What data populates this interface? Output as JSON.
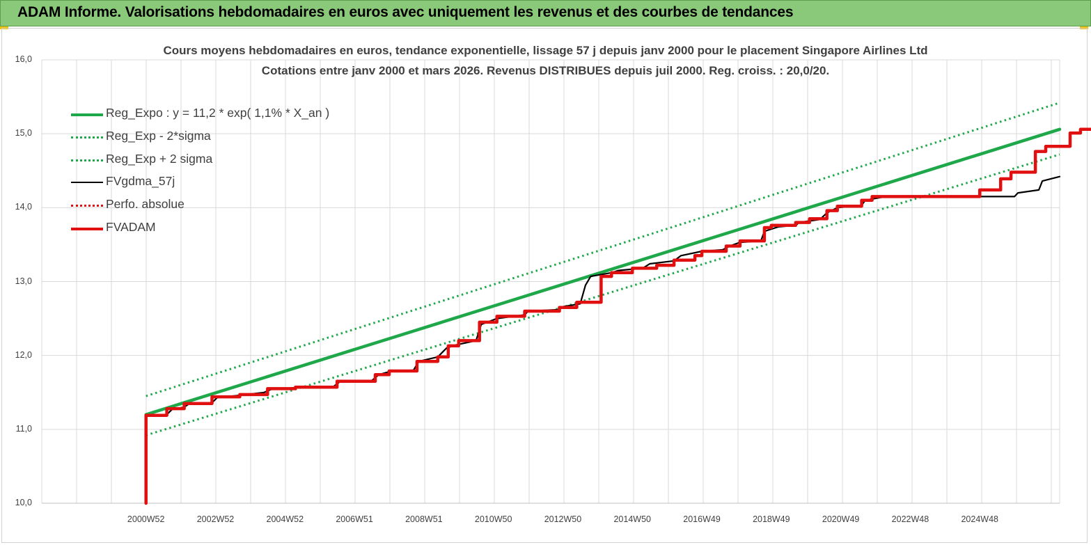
{
  "header": {
    "title": "ADAM Informe. Valorisations hebdomadaires en euros avec uniquement les revenus et des courbes de tendances"
  },
  "colors": {
    "header_bg": "#8ac97a",
    "reg_green": "#1fa84a",
    "fv_black": "#000000",
    "adam_red": "#e01010",
    "grid": "#d9d9d9"
  },
  "chart_data": {
    "type": "line",
    "title": "Cours moyens hebdomadaires en euros, tendance exponentielle, lissage 57 j depuis janv 2000 pour le placement Singapore Airlines Ltd",
    "subtitle": "Cotations entre janv 2000 et mars 2026. Revenus DISTRIBUES depuis juil 2000. Reg. croiss. : 20,0/20.",
    "xlabel": "",
    "ylabel": "",
    "ylim": [
      10.0,
      16.0
    ],
    "xlim": [
      1997.0,
      2026.3
    ],
    "y_ticks": [
      "10,0",
      "11,0",
      "12,0",
      "13,0",
      "14,0",
      "15,0",
      "16,0"
    ],
    "x_ticks": [
      {
        "label": "2000W52",
        "x": 2000.0
      },
      {
        "label": "2002W52",
        "x": 2002.0
      },
      {
        "label": "2004W52",
        "x": 2004.0
      },
      {
        "label": "2006W51",
        "x": 2006.0
      },
      {
        "label": "2008W51",
        "x": 2008.0
      },
      {
        "label": "2010W50",
        "x": 2010.0
      },
      {
        "label": "2012W50",
        "x": 2012.0
      },
      {
        "label": "2014W50",
        "x": 2014.0
      },
      {
        "label": "2016W49",
        "x": 2016.0
      },
      {
        "label": "2018W49",
        "x": 2018.0
      },
      {
        "label": "2020W49",
        "x": 2020.0
      },
      {
        "label": "2022W48",
        "x": 2022.0
      },
      {
        "label": "2024W48",
        "x": 2024.0
      }
    ],
    "grid": true,
    "legend_position": "top-left",
    "series": [
      {
        "name": "Reg_Expo : y = 11,2 * exp( 1,1% *  X_an )",
        "style": "solid-thick",
        "color": "#1fa84a",
        "points": [
          [
            2000.0,
            11.2
          ],
          [
            2026.3,
            15.06
          ]
        ]
      },
      {
        "name": "Reg_Exp - 2*sigma",
        "style": "dotted",
        "color": "#1fa84a",
        "points": [
          [
            2000.0,
            10.92
          ],
          [
            2026.3,
            14.72
          ]
        ]
      },
      {
        "name": "Reg_Exp + 2 sigma",
        "style": "dotted",
        "color": "#1fa84a",
        "points": [
          [
            2000.0,
            11.45
          ],
          [
            2026.3,
            15.42
          ]
        ]
      },
      {
        "name": "FVgdma_57j",
        "style": "solid",
        "color": "#000000",
        "points": [
          [
            2000.0,
            11.19
          ],
          [
            2000.6,
            11.2
          ],
          [
            2000.75,
            11.27
          ],
          [
            2001.1,
            11.3
          ],
          [
            2001.25,
            11.35
          ],
          [
            2001.9,
            11.36
          ],
          [
            2002.05,
            11.43
          ],
          [
            2002.7,
            11.46
          ],
          [
            2003.4,
            11.5
          ],
          [
            2003.6,
            11.54
          ],
          [
            2004.2,
            11.56
          ],
          [
            2005.4,
            11.58
          ],
          [
            2005.6,
            11.65
          ],
          [
            2006.5,
            11.66
          ],
          [
            2006.7,
            11.74
          ],
          [
            2007.0,
            11.78
          ],
          [
            2007.7,
            11.8
          ],
          [
            2007.85,
            11.92
          ],
          [
            2008.4,
            11.98
          ],
          [
            2008.65,
            12.1
          ],
          [
            2008.9,
            12.14
          ],
          [
            2009.5,
            12.2
          ],
          [
            2009.65,
            12.42
          ],
          [
            2010.1,
            12.5
          ],
          [
            2010.9,
            12.55
          ],
          [
            2011.0,
            12.6
          ],
          [
            2011.9,
            12.62
          ],
          [
            2012.0,
            12.66
          ],
          [
            2012.5,
            12.7
          ],
          [
            2012.65,
            12.95
          ],
          [
            2012.8,
            13.07
          ],
          [
            2013.4,
            13.12
          ],
          [
            2013.6,
            13.15
          ],
          [
            2014.3,
            13.18
          ],
          [
            2014.5,
            13.24
          ],
          [
            2015.2,
            13.28
          ],
          [
            2015.4,
            13.35
          ],
          [
            2016.0,
            13.41
          ],
          [
            2016.6,
            13.43
          ],
          [
            2016.8,
            13.48
          ],
          [
            2017.1,
            13.53
          ],
          [
            2017.7,
            13.55
          ],
          [
            2017.8,
            13.68
          ],
          [
            2018.2,
            13.74
          ],
          [
            2018.7,
            13.76
          ],
          [
            2018.8,
            13.8
          ],
          [
            2019.4,
            13.84
          ],
          [
            2019.6,
            13.93
          ],
          [
            2019.9,
            14.0
          ],
          [
            2020.6,
            14.03
          ],
          [
            2020.7,
            14.1
          ],
          [
            2021.3,
            14.15
          ],
          [
            2025.0,
            14.15
          ],
          [
            2025.1,
            14.2
          ],
          [
            2025.7,
            14.24
          ],
          [
            2025.8,
            14.36
          ],
          [
            2026.3,
            14.42
          ]
        ]
      },
      {
        "name": "Perfo. absolue",
        "style": "dotted",
        "color": "#e01010",
        "points": []
      },
      {
        "name": "FVADAM",
        "style": "solid-thick",
        "color": "#e01010",
        "points": [
          [
            2000.0,
            10.0
          ],
          [
            2000.0,
            11.19
          ],
          [
            2000.6,
            11.19
          ],
          [
            2000.6,
            11.28
          ],
          [
            2001.1,
            11.28
          ],
          [
            2001.1,
            11.35
          ],
          [
            2001.9,
            11.35
          ],
          [
            2001.9,
            11.44
          ],
          [
            2002.7,
            11.44
          ],
          [
            2002.7,
            11.47
          ],
          [
            2003.5,
            11.47
          ],
          [
            2003.5,
            11.55
          ],
          [
            2004.3,
            11.55
          ],
          [
            2004.3,
            11.57
          ],
          [
            2005.5,
            11.57
          ],
          [
            2005.5,
            11.65
          ],
          [
            2006.6,
            11.65
          ],
          [
            2006.6,
            11.74
          ],
          [
            2007.0,
            11.74
          ],
          [
            2007.0,
            11.79
          ],
          [
            2007.8,
            11.79
          ],
          [
            2007.8,
            11.92
          ],
          [
            2008.4,
            11.92
          ],
          [
            2008.4,
            11.98
          ],
          [
            2008.7,
            11.98
          ],
          [
            2008.7,
            12.13
          ],
          [
            2009.0,
            12.13
          ],
          [
            2009.0,
            12.2
          ],
          [
            2009.6,
            12.2
          ],
          [
            2009.6,
            12.45
          ],
          [
            2010.1,
            12.45
          ],
          [
            2010.1,
            12.53
          ],
          [
            2010.9,
            12.53
          ],
          [
            2010.9,
            12.6
          ],
          [
            2011.9,
            12.6
          ],
          [
            2011.9,
            12.65
          ],
          [
            2012.4,
            12.65
          ],
          [
            2012.4,
            12.72
          ],
          [
            2013.1,
            12.72
          ],
          [
            2013.1,
            13.07
          ],
          [
            2013.4,
            13.07
          ],
          [
            2013.4,
            13.12
          ],
          [
            2014.0,
            13.12
          ],
          [
            2014.0,
            13.18
          ],
          [
            2014.7,
            13.18
          ],
          [
            2014.7,
            13.22
          ],
          [
            2015.2,
            13.22
          ],
          [
            2015.2,
            13.29
          ],
          [
            2015.8,
            13.29
          ],
          [
            2015.8,
            13.35
          ],
          [
            2016.0,
            13.35
          ],
          [
            2016.0,
            13.41
          ],
          [
            2016.7,
            13.41
          ],
          [
            2016.7,
            13.48
          ],
          [
            2017.1,
            13.48
          ],
          [
            2017.1,
            13.55
          ],
          [
            2017.8,
            13.55
          ],
          [
            2017.8,
            13.73
          ],
          [
            2018.0,
            13.73
          ],
          [
            2018.0,
            13.76
          ],
          [
            2018.7,
            13.76
          ],
          [
            2018.7,
            13.8
          ],
          [
            2019.1,
            13.8
          ],
          [
            2019.1,
            13.85
          ],
          [
            2019.6,
            13.85
          ],
          [
            2019.6,
            13.96
          ],
          [
            2019.9,
            13.96
          ],
          [
            2019.9,
            14.02
          ],
          [
            2020.6,
            14.02
          ],
          [
            2020.6,
            14.1
          ],
          [
            2020.9,
            14.1
          ],
          [
            2020.9,
            14.15
          ],
          [
            2024.0,
            14.15
          ],
          [
            2024.0,
            14.24
          ],
          [
            2024.6,
            14.24
          ],
          [
            2024.6,
            14.39
          ],
          [
            2024.9,
            14.39
          ],
          [
            2024.9,
            14.48
          ],
          [
            2025.6,
            14.48
          ],
          [
            2025.6,
            14.76
          ],
          [
            2025.9,
            14.76
          ],
          [
            2025.9,
            14.83
          ],
          [
            2026.6,
            14.83
          ],
          [
            2026.6,
            15.01
          ],
          [
            2026.9,
            15.01
          ],
          [
            2026.9,
            15.06
          ],
          [
            2027.3,
            15.06
          ]
        ]
      }
    ]
  }
}
